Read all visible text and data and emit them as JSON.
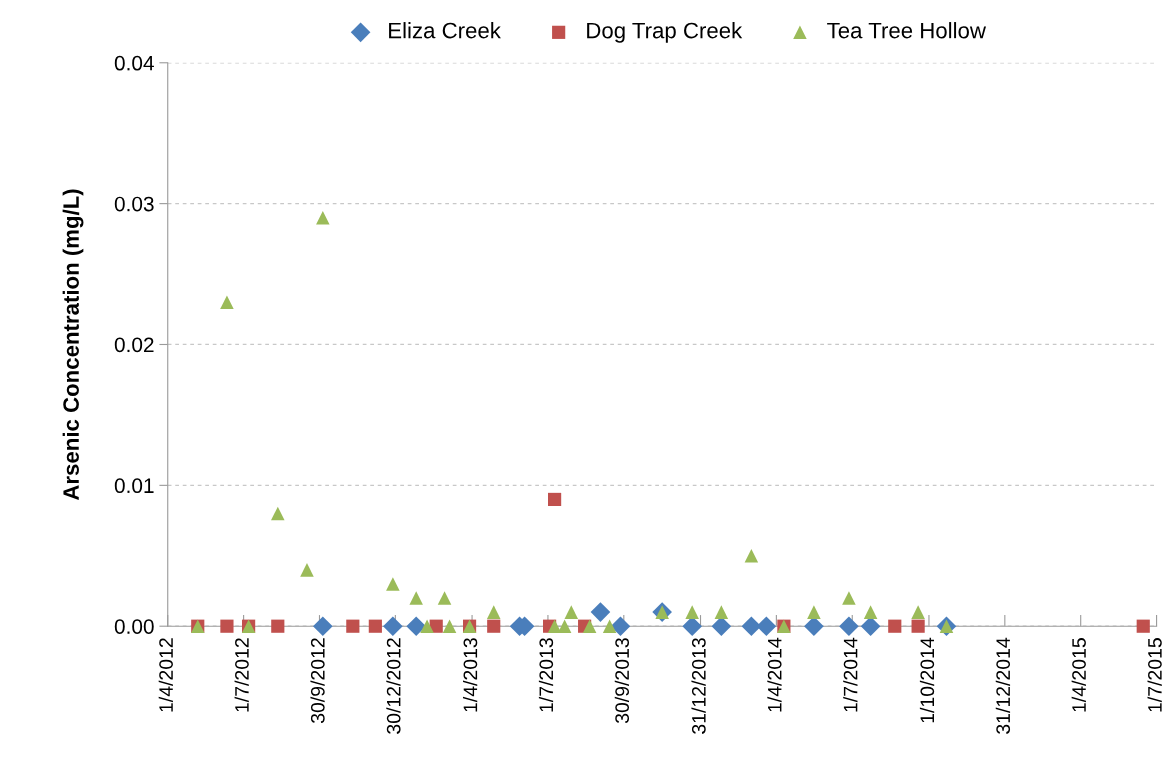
{
  "chart_data": {
    "type": "scatter",
    "ylabel": "Arsenic Concentration (mg/L)",
    "series": [
      {
        "name": "Eliza Creek",
        "color": "#4a7ebb",
        "marker": "diamond",
        "x": [
          "2012-10-04",
          "2012-12-27",
          "2013-01-24",
          "2013-05-28",
          "2013-06-03",
          "2013-09-02",
          "2013-09-26",
          "2013-11-15",
          "2013-12-21",
          "2014-01-25",
          "2014-03-02",
          "2014-03-20",
          "2014-05-16",
          "2014-06-27",
          "2014-07-23",
          "2014-10-22"
        ],
        "values": [
          0,
          0,
          0,
          0,
          0,
          0.001,
          0,
          0.001,
          0,
          0,
          0,
          0,
          0,
          0,
          0,
          0
        ]
      },
      {
        "name": "Dog Trap Creek",
        "color": "#c0504d",
        "marker": "square",
        "x": [
          "2012-05-07",
          "2012-06-11",
          "2012-07-07",
          "2012-08-11",
          "2012-11-09",
          "2012-12-06",
          "2013-02-17",
          "2013-03-29",
          "2013-04-27",
          "2013-07-03",
          "2013-07-09",
          "2013-08-14",
          "2014-04-10",
          "2014-08-21",
          "2014-09-18",
          "2015-06-15"
        ],
        "values": [
          0,
          0,
          0,
          0,
          0,
          0,
          0,
          0,
          0,
          0,
          0.009,
          0,
          0,
          0,
          0,
          0
        ]
      },
      {
        "name": "Tea Tree Hollow",
        "color": "#9bbb59",
        "marker": "triangle",
        "x": [
          "2012-05-07",
          "2012-06-11",
          "2012-07-07",
          "2012-08-11",
          "2012-09-15",
          "2012-10-04",
          "2012-12-27",
          "2013-01-24",
          "2013-02-06",
          "2013-02-27",
          "2013-03-05",
          "2013-03-29",
          "2013-04-27",
          "2013-07-09",
          "2013-07-21",
          "2013-07-29",
          "2013-08-20",
          "2013-09-13",
          "2013-11-15",
          "2013-12-21",
          "2014-01-25",
          "2014-03-02",
          "2014-04-10",
          "2014-05-16",
          "2014-06-27",
          "2014-07-23",
          "2014-09-18",
          "2014-10-22"
        ],
        "values": [
          0,
          0.023,
          0,
          0.008,
          0.004,
          0.029,
          0.003,
          0.002,
          0,
          0.002,
          0,
          0,
          0.001,
          0,
          0,
          0.001,
          0,
          0,
          0.001,
          0.001,
          0.001,
          0.005,
          0,
          0.001,
          0.002,
          0.001,
          0.001,
          0
        ]
      }
    ],
    "xlim": [
      "2012-04-01",
      "2015-07-01"
    ],
    "xticks": [
      {
        "value": "2012-04-01",
        "label": "1/4/2012"
      },
      {
        "value": "2012-07-01",
        "label": "1/7/2012"
      },
      {
        "value": "2012-09-30",
        "label": "30/9/2012"
      },
      {
        "value": "2012-12-30",
        "label": "30/12/2012"
      },
      {
        "value": "2013-04-01",
        "label": "1/4/2013"
      },
      {
        "value": "2013-07-01",
        "label": "1/7/2013"
      },
      {
        "value": "2013-09-30",
        "label": "30/9/2013"
      },
      {
        "value": "2013-12-31",
        "label": "31/12/2013"
      },
      {
        "value": "2014-04-01",
        "label": "1/4/2014"
      },
      {
        "value": "2014-07-01",
        "label": "1/7/2014"
      },
      {
        "value": "2014-10-01",
        "label": "1/10/2014"
      },
      {
        "value": "2014-12-31",
        "label": "31/12/2014"
      },
      {
        "value": "2015-04-01",
        "label": "1/4/2015"
      },
      {
        "value": "2015-07-01",
        "label": "1/7/2015"
      }
    ],
    "ylim": [
      0,
      0.04
    ],
    "yticks": [
      {
        "value": 0,
        "label": "0.00"
      },
      {
        "value": 0.01,
        "label": "0.01"
      },
      {
        "value": 0.02,
        "label": "0.02"
      },
      {
        "value": 0.03,
        "label": "0.03"
      },
      {
        "value": 0.04,
        "label": "0.04"
      }
    ],
    "grid": "y",
    "legend": "top"
  }
}
